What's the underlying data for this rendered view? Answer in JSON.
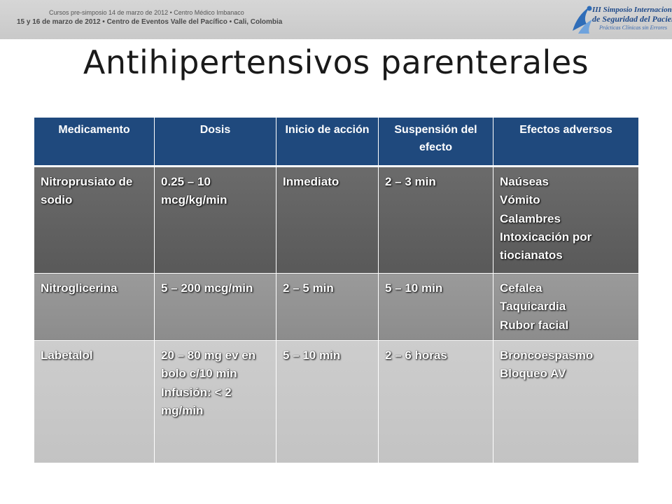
{
  "event": {
    "line1": "Cursos pre-simposio 14 de marzo de 2012 • Centro Médico Imbanaco",
    "line2": "15 y 16 de marzo de 2012 • Centro de Eventos Valle del Pacífico • Cali, Colombia"
  },
  "logo": {
    "line1": "III Simposio Internacional",
    "line2": "de Seguridad del Paciente",
    "line3": "Prácticas Clínicas sin Errores"
  },
  "title": "Antihipertensivos parenterales",
  "table": {
    "headers": [
      "Medicamento",
      "Dosis",
      "Inicio de acción",
      "Suspensión del efecto",
      "Efectos adversos"
    ],
    "rows": [
      [
        "Nitroprusiato de sodio",
        "0.25 – 10 mcg/kg/min",
        "Inmediato",
        "2 – 3 min",
        "Naúseas\nVómito\nCalambres\nIntoxicación por tiocianatos"
      ],
      [
        "Nitroglicerina",
        "5 – 200 mcg/min",
        "2 – 5 min",
        "5 – 10 min",
        "Cefalea\nTaquicardia\nRubor facial"
      ],
      [
        "Labetalol",
        "20 – 80 mg ev en bolo c/10 min\nInfusión: < 2 mg/min",
        "5 – 10 min",
        "2 – 6 horas",
        "Broncoespasmo\nBloqueo AV"
      ]
    ]
  },
  "colors": {
    "header_bg": "#1f497d",
    "row1_bg": "#5f5f5f",
    "row2_bg": "#939393",
    "row3_bg": "#c8c8c8"
  }
}
